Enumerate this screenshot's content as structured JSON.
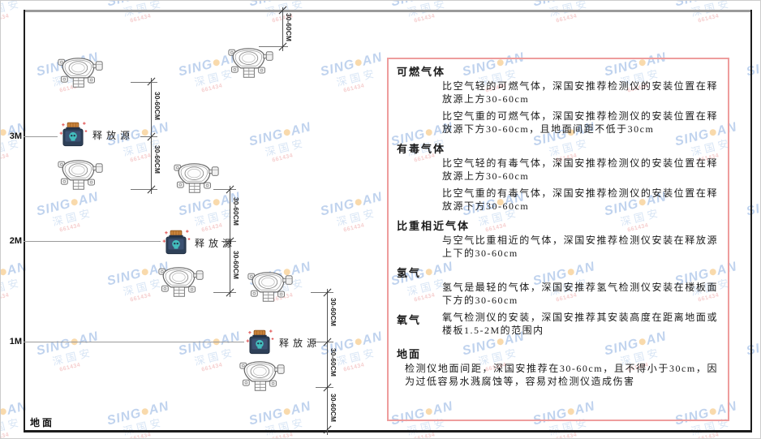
{
  "watermark": {
    "line1_left": "SING",
    "line1_right": "AN",
    "line2": "深国安",
    "line3": "661434"
  },
  "diagram": {
    "heights": [
      "3M",
      "2M",
      "1M"
    ],
    "ground_label": "地面",
    "release_source_label": "释放源",
    "dimension_label": "30-60CM"
  },
  "panel": {
    "sections": [
      {
        "heading": "可燃气体",
        "paragraphs": [
          "比空气轻的可燃气体，深国安推荐检测仪的安装位置在释放源上方30-60cm",
          "比空气重的可燃气体，深国安推荐检测仪的安装位置在释放源下方30-60cm，且地面间距不低于30cm"
        ]
      },
      {
        "heading": "有毒气体",
        "paragraphs": [
          "比空气轻的有毒气体，深国安推荐检测仪的安装位置在释放源上方30-60cm",
          "比空气重的有毒气体，深国安推荐检测仪的安装位置在释放源下方30-60cm"
        ]
      },
      {
        "heading": "比重相近气体",
        "paragraphs": [
          "与空气比重相近的气体，深国安推荐检测仪安装在释放源上下的30-60cm"
        ]
      },
      {
        "heading": "氢气",
        "paragraphs": [
          "氢气是最轻的气体，深国安推荐氢气检测仪安装在楼板面下方的30-60cm"
        ]
      },
      {
        "heading": "氧气",
        "paragraphs": [
          "氧气检测仪的安装，深国安推荐其安装高度在距离地面或楼板1.5-2M的范围内"
        ]
      },
      {
        "heading": "地面",
        "paragraphs": [
          "检测仪地面间距，深国安推荐在30-60cm，且不得小于30cm，因为过低容易水溅腐蚀等，容易对检测仪造成伤害"
        ]
      }
    ]
  },
  "colors": {
    "panel_border": "#ee9d9d",
    "watermark_blue": "#6b97d8",
    "watermark_light_blue": "#a3c2e8",
    "watermark_red": "#e98b8b",
    "source_body": "#2e4058",
    "source_cap": "#c8823c",
    "skull_teal": "#43bdbd"
  }
}
